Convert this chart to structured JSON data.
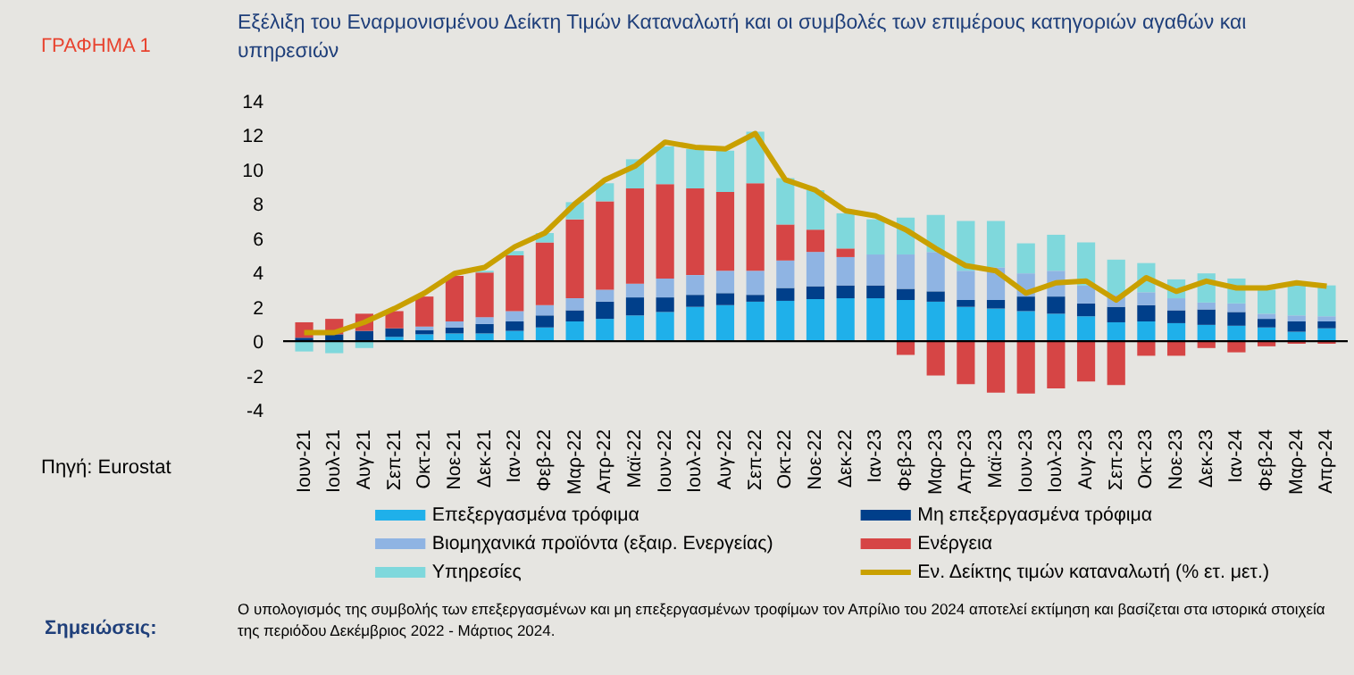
{
  "chart_data": {
    "type": "bar",
    "stacked": true,
    "title": "Εξέλιξη του Εναρμονισμένου Δείκτη Τιμών  Καταναλωτή και οι συμβολές των επιμέρους κατηγοριών αγαθών και υπηρεσιών",
    "annotations": [
      "ΓΡΑΦΗΜΑ 1",
      "Πηγή: Eurostat",
      "Σημειώσεις:",
      "Ο υπολογισμός της συμβολής των επεξεργασμένων και μη επεξεργασμένων τροφίμων τον Απρίλιο του 2024 αποτελεί εκτίμηση και βασίζεται στα ιστορικά στοιχεία της περιόδου Δεκέμβριος 2022 - Μάρτιος 2024."
    ],
    "categories": [
      "Ιουν-21",
      "Ιουλ-21",
      "Αυγ-21",
      "Σεπ-21",
      "Οκτ-21",
      "Νοε-21",
      "Δεκ-21",
      "Ιαν-22",
      "Φεβ-22",
      "Μαρ-22",
      "Απρ-22",
      "Μαϊ-22",
      "Ιουν-22",
      "Ιουλ-22",
      "Αυγ-22",
      "Σεπ-22",
      "Οκτ-22",
      "Νοε-22",
      "Δεκ-22",
      "Ιαν-23",
      "Φεβ-23",
      "Μαρ-23",
      "Απρ-23",
      "Μαϊ-23",
      "Ιουν-23",
      "Ιουλ-23",
      "Αυγ-23",
      "Σεπ-23",
      "Οκτ-23",
      "Νοε-23",
      "Δεκ-23",
      "Ιαν-24",
      "Φεβ-24",
      "Μαρ-24",
      "Απρ-24"
    ],
    "series": [
      {
        "name": "Επεξεργασμένα τρόφιμα",
        "color": "#1fb0ea",
        "values": [
          0.0,
          0.0,
          0.0,
          0.25,
          0.4,
          0.45,
          0.45,
          0.6,
          0.8,
          1.15,
          1.3,
          1.5,
          1.7,
          2.0,
          2.1,
          2.3,
          2.35,
          2.45,
          2.5,
          2.5,
          2.4,
          2.3,
          2.0,
          1.9,
          1.75,
          1.6,
          1.45,
          1.1,
          1.15,
          1.05,
          0.95,
          0.9,
          0.8,
          0.55,
          0.75
        ]
      },
      {
        "name": "Μη επεξεργασμένα τρόφιμα",
        "color": "#003f8a",
        "values": [
          0.2,
          0.4,
          0.6,
          0.5,
          0.25,
          0.35,
          0.55,
          0.55,
          0.7,
          0.65,
          1.0,
          1.05,
          0.85,
          0.7,
          0.7,
          0.4,
          0.75,
          0.75,
          0.75,
          0.75,
          0.65,
          0.6,
          0.4,
          0.5,
          0.85,
          1.0,
          0.75,
          0.9,
          0.95,
          0.75,
          0.9,
          0.8,
          0.5,
          0.6,
          0.4
        ]
      },
      {
        "name": "Βιομηχανικά προϊόντα (εξαιρ. Ενεργείας)",
        "color": "#8fb4e3",
        "values": [
          0.0,
          0.0,
          0.0,
          0.0,
          0.2,
          0.35,
          0.4,
          0.6,
          0.6,
          0.7,
          0.7,
          0.8,
          1.1,
          1.15,
          1.3,
          1.4,
          1.6,
          2.0,
          1.65,
          1.8,
          2.0,
          2.3,
          1.7,
          1.9,
          1.35,
          1.5,
          1.05,
          0.7,
          0.75,
          0.7,
          0.4,
          0.5,
          0.3,
          0.35,
          0.3
        ]
      },
      {
        "name": "Ενέργεια",
        "color": "#d64545",
        "values": [
          0.9,
          0.9,
          1.0,
          1.0,
          1.75,
          2.65,
          2.6,
          3.25,
          3.65,
          4.6,
          5.15,
          5.55,
          5.5,
          5.05,
          4.6,
          5.1,
          2.1,
          1.3,
          0.5,
          0.0,
          -0.8,
          -2.0,
          -2.5,
          -3.0,
          -3.05,
          -2.75,
          -2.35,
          -2.55,
          -0.85,
          -0.85,
          -0.4,
          -0.65,
          -0.3,
          -0.15,
          -0.15
        ]
      },
      {
        "name": "Υπηρεσίες",
        "color": "#7fd8dc",
        "values": [
          -0.6,
          -0.7,
          -0.4,
          0.0,
          0.0,
          0.0,
          0.1,
          0.25,
          0.55,
          1.0,
          1.05,
          1.7,
          2.2,
          2.3,
          2.4,
          3.0,
          2.7,
          2.3,
          2.05,
          2.05,
          2.15,
          2.15,
          2.9,
          2.7,
          1.75,
          2.1,
          2.5,
          2.05,
          1.7,
          1.1,
          1.7,
          1.45,
          1.4,
          1.9,
          1.8
        ]
      },
      {
        "name": "Εν. Δείκτης τιμών καταναλωτή (% ετ. μετ.)",
        "color": "#c9a000",
        "type": "line",
        "values": [
          0.5,
          0.5,
          1.1,
          1.9,
          2.8,
          3.95,
          4.3,
          5.5,
          6.3,
          8.0,
          9.4,
          10.2,
          11.6,
          11.3,
          11.2,
          12.1,
          9.4,
          8.8,
          7.6,
          7.3,
          6.5,
          5.4,
          4.4,
          4.1,
          2.8,
          3.4,
          3.5,
          2.4,
          3.7,
          2.9,
          3.5,
          3.1,
          3.1,
          3.4,
          3.2
        ]
      }
    ],
    "ylim": [
      -4,
      14
    ],
    "yticks": [
      -4,
      -2,
      0,
      2,
      4,
      6,
      8,
      10,
      12,
      14
    ],
    "ref_lines": [
      {
        "axis": "y",
        "value": 0,
        "color": "#000000"
      }
    ],
    "legend": "bottom"
  }
}
